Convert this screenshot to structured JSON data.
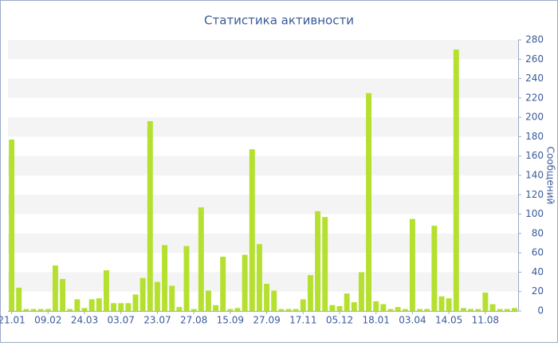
{
  "chart_data": {
    "type": "bar",
    "title": "Статистика активности",
    "y_label": "Сообщений",
    "categories": [
      "21.01",
      null,
      null,
      null,
      null,
      "09.02",
      null,
      null,
      null,
      null,
      "24.03",
      null,
      null,
      null,
      null,
      "03.07",
      null,
      null,
      null,
      null,
      "23.07",
      null,
      null,
      null,
      null,
      "27.08",
      null,
      null,
      null,
      null,
      "15.09",
      null,
      null,
      null,
      null,
      "27.09",
      null,
      null,
      null,
      null,
      "17.11",
      null,
      null,
      null,
      null,
      "05.12",
      null,
      null,
      null,
      null,
      "18.01",
      null,
      null,
      null,
      null,
      "03.04",
      null,
      null,
      null,
      null,
      "14.05",
      null,
      null,
      null,
      null,
      "11.08",
      null,
      null,
      null,
      null
    ],
    "values": [
      177,
      24,
      2,
      2,
      2,
      2,
      47,
      33,
      2,
      12,
      3,
      12,
      13,
      42,
      8,
      8,
      8,
      17,
      34,
      196,
      30,
      68,
      26,
      4,
      67,
      2,
      107,
      21,
      6,
      56,
      2,
      3,
      58,
      167,
      69,
      28,
      21,
      2,
      2,
      2,
      12,
      37,
      103,
      97,
      6,
      5,
      18,
      9,
      40,
      225,
      10,
      7,
      2,
      4,
      2,
      95,
      2,
      2,
      88,
      15,
      13,
      270,
      3,
      2,
      2,
      19,
      7,
      2,
      2,
      3
    ],
    "color": "#b5e02f",
    "ylim": [
      0,
      280
    ],
    "yticks": [
      0,
      20,
      40,
      60,
      80,
      100,
      120,
      140,
      160,
      180,
      200,
      220,
      240,
      260,
      280
    ],
    "grid": true
  }
}
